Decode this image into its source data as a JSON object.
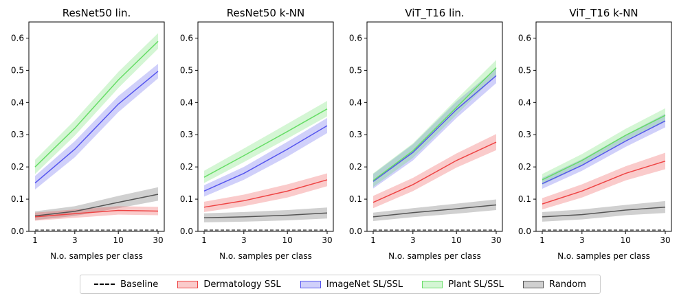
{
  "figure": {
    "legend": {
      "items": [
        {
          "label": "Baseline",
          "kind": "dashed-line",
          "color": "#000000"
        },
        {
          "label": "Dermatology SSL",
          "kind": "band",
          "color": "#ee4444"
        },
        {
          "label": "ImageNet SL/SSL",
          "kind": "band",
          "color": "#5555ee"
        },
        {
          "label": "Plant SL/SSL",
          "kind": "band",
          "color": "#66dd66"
        },
        {
          "label": "Random",
          "kind": "band",
          "color": "#555555"
        }
      ]
    }
  },
  "chart_data": [
    {
      "type": "line",
      "title": "ResNet50 lin.",
      "xlabel": "N.o. samples per class",
      "ylabel": "",
      "x": [
        1,
        3,
        10,
        30
      ],
      "x_ticks": [
        "1",
        "3",
        "10",
        "30"
      ],
      "x_scale": "log",
      "ylim": [
        0,
        0.65
      ],
      "y_ticks": [
        "0.0",
        "0.1",
        "0.2",
        "0.3",
        "0.4",
        "0.5",
        "0.6"
      ],
      "baseline": 0.004,
      "series": [
        {
          "name": "Random",
          "color": "#555555",
          "values": [
            0.048,
            0.062,
            0.09,
            0.115
          ],
          "lower": [
            0.035,
            0.048,
            0.072,
            0.095
          ],
          "upper": [
            0.062,
            0.078,
            0.11,
            0.137
          ]
        },
        {
          "name": "Dermatology SSL",
          "color": "#ee4444",
          "values": [
            0.045,
            0.055,
            0.065,
            0.063
          ],
          "lower": [
            0.033,
            0.042,
            0.052,
            0.05
          ],
          "upper": [
            0.058,
            0.068,
            0.078,
            0.076
          ]
        },
        {
          "name": "ImageNet SL/SSL",
          "color": "#5555ee",
          "values": [
            0.15,
            0.255,
            0.395,
            0.497
          ],
          "lower": [
            0.13,
            0.23,
            0.37,
            0.475
          ],
          "upper": [
            0.172,
            0.28,
            0.42,
            0.52
          ]
        },
        {
          "name": "Plant SL/SSL",
          "color": "#66dd66",
          "values": [
            0.2,
            0.32,
            0.47,
            0.59
          ],
          "lower": [
            0.178,
            0.297,
            0.445,
            0.567
          ],
          "upper": [
            0.222,
            0.345,
            0.495,
            0.615
          ]
        }
      ]
    },
    {
      "type": "line",
      "title": "ResNet50 k-NN",
      "xlabel": "N.o. samples per class",
      "ylabel": "",
      "x": [
        1,
        3,
        10,
        30
      ],
      "x_ticks": [
        "1",
        "3",
        "10",
        "30"
      ],
      "x_scale": "log",
      "ylim": [
        0,
        0.65
      ],
      "y_ticks": [
        "0.0",
        "0.1",
        "0.2",
        "0.3",
        "0.4",
        "0.5",
        "0.6"
      ],
      "baseline": 0.004,
      "series": [
        {
          "name": "Random",
          "color": "#555555",
          "values": [
            0.042,
            0.045,
            0.05,
            0.057
          ],
          "lower": [
            0.028,
            0.03,
            0.034,
            0.04
          ],
          "upper": [
            0.056,
            0.06,
            0.066,
            0.074
          ]
        },
        {
          "name": "Dermatology SSL",
          "color": "#ee4444",
          "values": [
            0.075,
            0.095,
            0.125,
            0.16
          ],
          "lower": [
            0.06,
            0.078,
            0.105,
            0.14
          ],
          "upper": [
            0.092,
            0.114,
            0.146,
            0.18
          ]
        },
        {
          "name": "ImageNet SL/SSL",
          "color": "#5555ee",
          "values": [
            0.125,
            0.18,
            0.255,
            0.328
          ],
          "lower": [
            0.108,
            0.16,
            0.232,
            0.305
          ],
          "upper": [
            0.143,
            0.2,
            0.278,
            0.352
          ]
        },
        {
          "name": "Plant SL/SSL",
          "color": "#66dd66",
          "values": [
            0.168,
            0.235,
            0.31,
            0.38
          ],
          "lower": [
            0.15,
            0.215,
            0.288,
            0.357
          ],
          "upper": [
            0.188,
            0.257,
            0.334,
            0.405
          ]
        }
      ]
    },
    {
      "type": "line",
      "title": "ViT_T16 lin.",
      "xlabel": "N.o. samples per class",
      "ylabel": "",
      "x": [
        1,
        3,
        10,
        30
      ],
      "x_ticks": [
        "1",
        "3",
        "10",
        "30"
      ],
      "x_scale": "log",
      "ylim": [
        0,
        0.65
      ],
      "y_ticks": [
        "0.0",
        "0.1",
        "0.2",
        "0.3",
        "0.4",
        "0.5",
        "0.6"
      ],
      "baseline": 0.004,
      "series": [
        {
          "name": "Random",
          "color": "#555555",
          "values": [
            0.045,
            0.058,
            0.07,
            0.082
          ],
          "lower": [
            0.032,
            0.044,
            0.055,
            0.066
          ],
          "upper": [
            0.058,
            0.072,
            0.086,
            0.099
          ]
        },
        {
          "name": "Dermatology SSL",
          "color": "#ee4444",
          "values": [
            0.09,
            0.145,
            0.22,
            0.277
          ],
          "lower": [
            0.072,
            0.125,
            0.198,
            0.252
          ],
          "upper": [
            0.11,
            0.166,
            0.242,
            0.302
          ]
        },
        {
          "name": "ImageNet SL/SSL",
          "color": "#5555ee",
          "values": [
            0.155,
            0.245,
            0.378,
            0.483
          ],
          "lower": [
            0.133,
            0.22,
            0.352,
            0.46
          ],
          "upper": [
            0.178,
            0.27,
            0.403,
            0.506
          ]
        },
        {
          "name": "Plant SL/SSL",
          "color": "#66dd66",
          "values": [
            0.158,
            0.25,
            0.385,
            0.508
          ],
          "lower": [
            0.138,
            0.228,
            0.362,
            0.485
          ],
          "upper": [
            0.18,
            0.273,
            0.41,
            0.532
          ]
        }
      ]
    },
    {
      "type": "line",
      "title": "ViT_T16 k-NN",
      "xlabel": "N.o. samples per class",
      "ylabel": "",
      "x": [
        1,
        3,
        10,
        30
      ],
      "x_ticks": [
        "1",
        "3",
        "10",
        "30"
      ],
      "x_scale": "log",
      "ylim": [
        0,
        0.65
      ],
      "y_ticks": [
        "0.0",
        "0.1",
        "0.2",
        "0.3",
        "0.4",
        "0.5",
        "0.6"
      ],
      "baseline": 0.004,
      "series": [
        {
          "name": "Random",
          "color": "#555555",
          "values": [
            0.045,
            0.052,
            0.066,
            0.075
          ],
          "lower": [
            0.03,
            0.037,
            0.05,
            0.057
          ],
          "upper": [
            0.06,
            0.068,
            0.082,
            0.094
          ]
        },
        {
          "name": "Dermatology SSL",
          "color": "#ee4444",
          "values": [
            0.085,
            0.125,
            0.18,
            0.218
          ],
          "lower": [
            0.068,
            0.105,
            0.158,
            0.193
          ],
          "upper": [
            0.103,
            0.146,
            0.202,
            0.244
          ]
        },
        {
          "name": "ImageNet SL/SSL",
          "color": "#5555ee",
          "values": [
            0.148,
            0.205,
            0.28,
            0.343
          ],
          "lower": [
            0.132,
            0.188,
            0.262,
            0.323
          ],
          "upper": [
            0.166,
            0.224,
            0.3,
            0.365
          ]
        },
        {
          "name": "Plant SL/SSL",
          "color": "#66dd66",
          "values": [
            0.16,
            0.22,
            0.298,
            0.36
          ],
          "lower": [
            0.144,
            0.203,
            0.28,
            0.34
          ],
          "upper": [
            0.178,
            0.24,
            0.318,
            0.382
          ]
        }
      ]
    }
  ]
}
